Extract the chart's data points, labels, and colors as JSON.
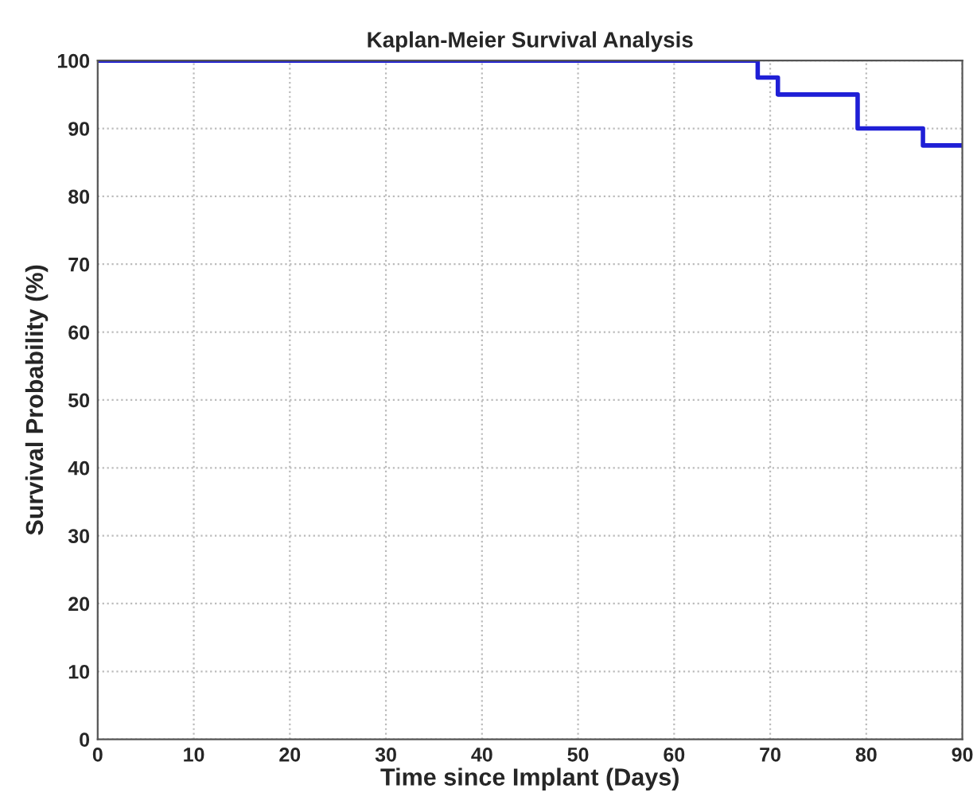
{
  "chart_data": {
    "type": "step",
    "title": "Kaplan-Meier Survival Analysis",
    "xlabel": "Time since Implant (Days)",
    "ylabel": "Survival Probability (%)",
    "series": [
      {
        "color": "#1f1fd6",
        "x": [
          0,
          68.7,
          70.8,
          79.1,
          85.9,
          90
        ],
        "values": [
          100,
          97.5,
          95,
          90,
          87.5,
          87.5
        ]
      }
    ],
    "xlim": [
      0,
      90
    ],
    "ylim": [
      0,
      100
    ],
    "xticks": [
      0,
      10,
      20,
      30,
      40,
      50,
      60,
      70,
      80,
      90
    ],
    "yticks": [
      0,
      10,
      20,
      30,
      40,
      50,
      60,
      70,
      80,
      90,
      100
    ],
    "grid": true,
    "line_style": "solid"
  }
}
